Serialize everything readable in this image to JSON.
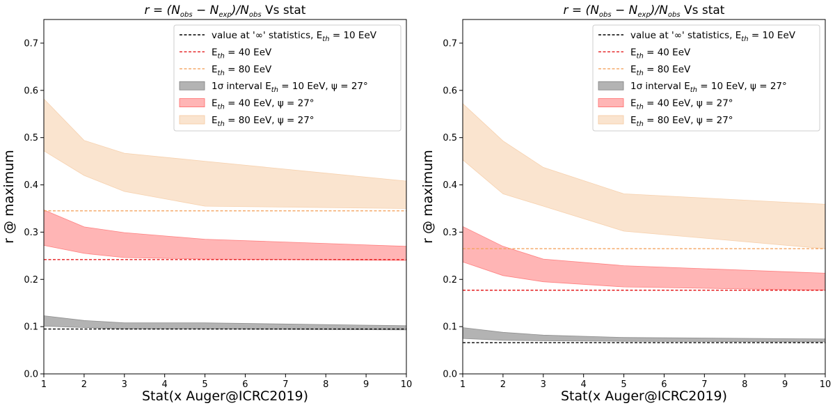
{
  "chart_data": [
    {
      "type": "area",
      "title": "r = (N_obs − N_exp)/N_obs Vs stat",
      "title_parts": {
        "lead": "r = (N",
        "obs": "obs",
        "mid": " − N",
        "exp": "exp",
        "tail": ")/N",
        "tail_sub": "obs",
        "suffix": " Vs stat"
      },
      "xlabel": "Stat(x Auger@ICRC2019)",
      "ylabel": "r @ maximum",
      "xlim": [
        1,
        10
      ],
      "ylim": [
        0.0,
        0.75
      ],
      "xticks": [
        1,
        2,
        3,
        4,
        5,
        6,
        7,
        8,
        9,
        10
      ],
      "yticks": [
        0.0,
        0.1,
        0.2,
        0.3,
        0.4,
        0.5,
        0.6,
        0.7
      ],
      "legend_position": "top-right",
      "x": [
        1,
        2,
        3,
        5,
        10
      ],
      "lines": [
        {
          "name": "value at '∞' statistics, E_th = 10 EeV",
          "color": "#000000",
          "value": 0.095
        },
        {
          "name": "E_th = 40 EeV",
          "color": "#e41a1c",
          "value": 0.242
        },
        {
          "name": "E_th = 80 EeV",
          "color": "#f4a460",
          "value": 0.345
        }
      ],
      "bands": [
        {
          "name": "1σ interval E_th = 10 EeV, ψ = 27°",
          "color": "#808080",
          "opacity": 0.6,
          "lower": [
            0.101,
            0.098,
            0.095,
            0.095,
            0.093
          ],
          "upper": [
            0.123,
            0.113,
            0.108,
            0.108,
            0.102
          ]
        },
        {
          "name": "E_th = 40 EeV, ψ = 27°",
          "color": "#ff6b6b",
          "opacity": 0.5,
          "lower": [
            0.272,
            0.255,
            0.246,
            0.243,
            0.24
          ],
          "upper": [
            0.347,
            0.311,
            0.299,
            0.285,
            0.27
          ]
        },
        {
          "name": "E_th = 80 EeV, ψ = 27°",
          "color": "#f5c9a0",
          "opacity": 0.5,
          "lower": [
            0.472,
            0.42,
            0.386,
            0.355,
            0.35
          ],
          "upper": [
            0.582,
            0.494,
            0.467,
            0.45,
            0.408
          ]
        }
      ]
    },
    {
      "type": "area",
      "title": "r = (N_obs − N_exp)/N_obs Vs stat",
      "title_parts": {
        "lead": "r = (N",
        "obs": "obs",
        "mid": " − N",
        "exp": "exp",
        "tail": ")/N",
        "tail_sub": "obs",
        "suffix": " Vs stat"
      },
      "xlabel": "Stat(x Auger@ICRC2019)",
      "ylabel": "r @ maximum",
      "xlim": [
        1,
        10
      ],
      "ylim": [
        0.0,
        0.75
      ],
      "xticks": [
        1,
        2,
        3,
        4,
        5,
        6,
        7,
        8,
        9,
        10
      ],
      "yticks": [
        0.0,
        0.1,
        0.2,
        0.3,
        0.4,
        0.5,
        0.6,
        0.7
      ],
      "legend_position": "top-right",
      "x": [
        1,
        2,
        3,
        5,
        10
      ],
      "lines": [
        {
          "name": "value at '∞' statistics, E_th = 10 EeV",
          "color": "#000000",
          "value": 0.066
        },
        {
          "name": "E_th = 40 EeV",
          "color": "#e41a1c",
          "value": 0.177
        },
        {
          "name": "E_th = 80 EeV",
          "color": "#f4a460",
          "value": 0.265
        }
      ],
      "bands": [
        {
          "name": "1σ interval E_th = 10 EeV, ψ = 27°",
          "color": "#808080",
          "opacity": 0.6,
          "lower": [
            0.075,
            0.071,
            0.07,
            0.069,
            0.068
          ],
          "upper": [
            0.098,
            0.088,
            0.082,
            0.077,
            0.074
          ]
        },
        {
          "name": "E_th = 40 EeV, ψ = 27°",
          "color": "#ff6b6b",
          "opacity": 0.5,
          "lower": [
            0.237,
            0.208,
            0.195,
            0.184,
            0.177
          ],
          "upper": [
            0.312,
            0.27,
            0.243,
            0.229,
            0.213
          ]
        },
        {
          "name": "E_th = 80 EeV, ψ = 27°",
          "color": "#f5c9a0",
          "opacity": 0.5,
          "lower": [
            0.453,
            0.381,
            0.355,
            0.302,
            0.265
          ],
          "upper": [
            0.572,
            0.493,
            0.437,
            0.381,
            0.359
          ]
        }
      ]
    }
  ],
  "legend_labels": {
    "line_inf": {
      "prefix": "value at '∞' statistics, E",
      "sub": "th",
      "suffix": " = 10 EeV"
    },
    "line_40": {
      "prefix": "E",
      "sub": "th",
      "suffix": " = 40 EeV"
    },
    "line_80": {
      "prefix": "E",
      "sub": "th",
      "suffix": " = 80 EeV"
    },
    "band_10": {
      "prefix": "1σ interval E",
      "sub": "th",
      "suffix": " = 10 EeV, ψ = 27°"
    },
    "band_40": {
      "prefix": "E",
      "sub": "th",
      "suffix": " = 40 EeV, ψ = 27°"
    },
    "band_80": {
      "prefix": "E",
      "sub": "th",
      "suffix": " = 80 EeV, ψ = 27°"
    }
  }
}
